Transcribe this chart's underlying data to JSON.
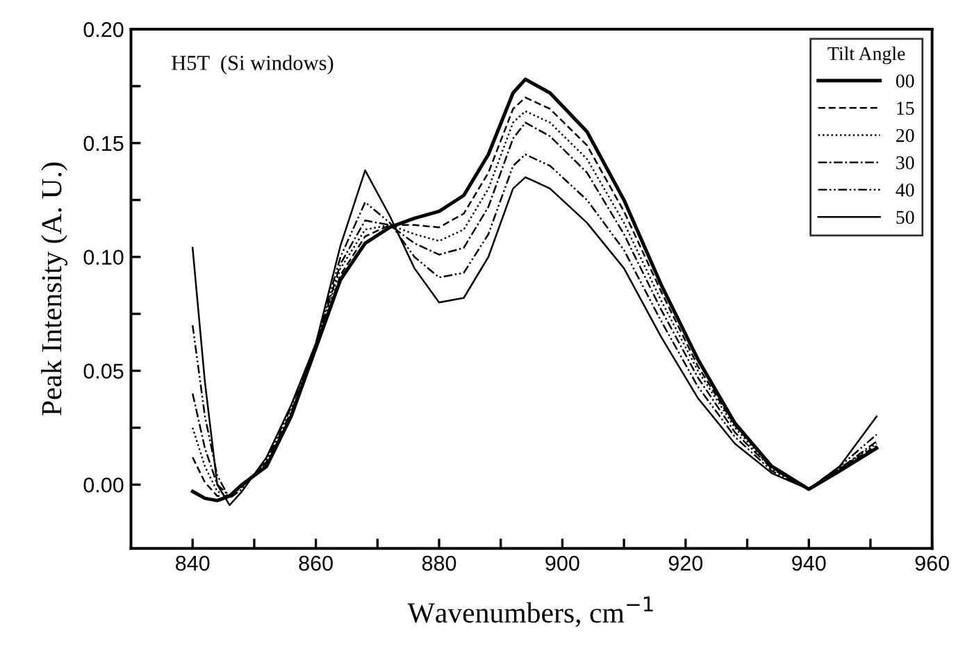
{
  "chart_data": {
    "type": "line",
    "xlabel": "Wavenumbers, cm$^{−1}$",
    "ylabel": "Peak Intensity (A. U.)",
    "legend_title": "Tilt Angle",
    "legend": "top right",
    "annotations": [
      "H5T  (Si windows)"
    ],
    "xlim": [
      830,
      960
    ],
    "ylim": [
      -0.028,
      0.2
    ],
    "xticks": [
      840,
      {
        "value": 850,
        "label": null
      },
      860,
      {
        "value": 870,
        "label": null
      },
      880,
      {
        "value": 890,
        "label": null
      },
      900,
      {
        "value": 910,
        "label": null
      },
      920,
      {
        "value": 930,
        "label": null
      },
      940,
      {
        "value": 950,
        "label": null
      },
      960
    ],
    "yticks": [
      {
        "value": 0,
        "label": "0.00"
      },
      {
        "value": 0.025,
        "label": null
      },
      {
        "value": 0.05,
        "label": "0.05"
      },
      {
        "value": 0.075,
        "label": null
      },
      {
        "value": 0.1,
        "label": "0.10"
      },
      {
        "value": 0.125,
        "label": null
      },
      {
        "value": 0.15,
        "label": "0.15"
      },
      {
        "value": 0.175,
        "label": null
      },
      {
        "value": 0.2,
        "label": "0.20"
      }
    ],
    "grid": false,
    "x": [
      840,
      842,
      844,
      846,
      848,
      852,
      856,
      860,
      864,
      868,
      872,
      876,
      880,
      884,
      888,
      892,
      894,
      898,
      904,
      910,
      916,
      922,
      928,
      934,
      940,
      945,
      951
    ],
    "series": [
      {
        "name": "00",
        "color": "#000000",
        "line_style": "solid",
        "values": [
          -0.003,
          -0.006,
          -0.007,
          -0.005,
          0.0,
          0.008,
          0.03,
          0.06,
          0.09,
          0.106,
          0.113,
          0.117,
          0.12,
          0.127,
          0.145,
          0.172,
          0.178,
          0.172,
          0.155,
          0.125,
          0.088,
          0.055,
          0.027,
          0.008,
          -0.002,
          0.006,
          0.016
        ]
      },
      {
        "name": "15",
        "color": "#000000",
        "line_style": "dashed",
        "values": [
          0.012,
          0.001,
          -0.005,
          -0.005,
          0.0,
          0.009,
          0.03,
          0.06,
          0.092,
          0.109,
          0.114,
          0.114,
          0.113,
          0.119,
          0.137,
          0.165,
          0.17,
          0.165,
          0.149,
          0.12,
          0.085,
          0.052,
          0.026,
          0.008,
          -0.002,
          0.007,
          0.017
        ]
      },
      {
        "name": "20",
        "color": "#000000",
        "line_style": "dotted",
        "values": [
          0.025,
          0.008,
          -0.003,
          -0.005,
          0.0,
          0.009,
          0.031,
          0.061,
          0.095,
          0.112,
          0.114,
          0.11,
          0.107,
          0.112,
          0.13,
          0.159,
          0.164,
          0.159,
          0.143,
          0.115,
          0.081,
          0.05,
          0.025,
          0.007,
          -0.002,
          0.007,
          0.018
        ]
      },
      {
        "name": "30",
        "color": "#000000",
        "line_style": "dashdot",
        "values": [
          0.04,
          0.016,
          0.0,
          -0.005,
          -0.001,
          0.01,
          0.032,
          0.061,
          0.097,
          0.116,
          0.114,
          0.106,
          0.101,
          0.104,
          0.122,
          0.152,
          0.159,
          0.153,
          0.137,
          0.11,
          0.077,
          0.047,
          0.023,
          0.007,
          -0.002,
          0.007,
          0.019
        ]
      },
      {
        "name": "40",
        "color": "#000000",
        "line_style": "dashdotdot",
        "values": [
          0.07,
          0.03,
          0.004,
          -0.006,
          -0.002,
          0.011,
          0.034,
          0.062,
          0.1,
          0.124,
          0.115,
          0.1,
          0.091,
          0.093,
          0.11,
          0.14,
          0.145,
          0.14,
          0.125,
          0.103,
          0.072,
          0.043,
          0.021,
          0.006,
          -0.002,
          0.008,
          0.022
        ]
      },
      {
        "name": "50",
        "color": "#000000",
        "line_style": "solid",
        "values": [
          0.104,
          0.045,
          0.0,
          -0.009,
          -0.003,
          0.012,
          0.035,
          0.062,
          0.105,
          0.138,
          0.118,
          0.095,
          0.08,
          0.082,
          0.1,
          0.13,
          0.135,
          0.13,
          0.115,
          0.095,
          0.065,
          0.038,
          0.018,
          0.005,
          -0.002,
          0.008,
          0.03
        ]
      }
    ]
  }
}
